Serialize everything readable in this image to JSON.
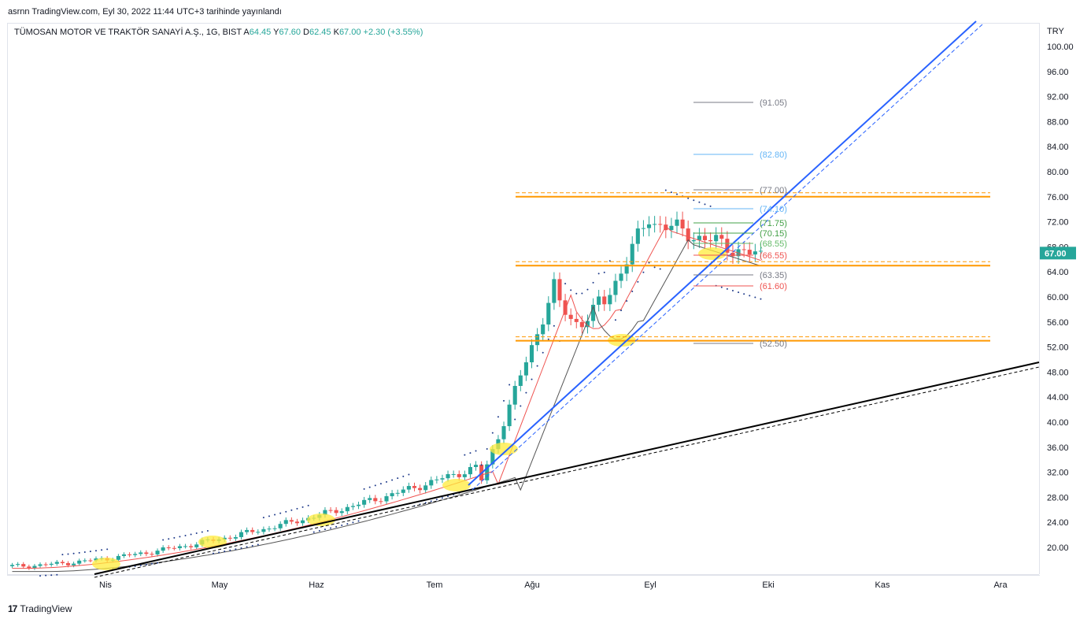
{
  "header": {
    "publish_line": "asrnn TradingView.com, Eyl 30, 2022 11:44 UTC+3 tarihinde yayınlandı"
  },
  "legend": {
    "symbol": "TÜMOSAN MOTOR VE TRAKTÖR SANAYİ A.Ş., 1G, BIST",
    "open_label": "A",
    "open": "64.45",
    "high_label": "Y",
    "high": "67.60",
    "low_label": "D",
    "low": "62.45",
    "close_label": "K",
    "close": "67.00",
    "change": "+2.30 (+3.55%)"
  },
  "price_axis": {
    "currency": "TRY",
    "ticks": [
      "100.00",
      "96.00",
      "92.00",
      "88.00",
      "84.00",
      "80.00",
      "76.00",
      "72.00",
      "68.00",
      "64.00",
      "60.00",
      "56.00",
      "52.00",
      "48.00",
      "44.00",
      "40.00",
      "36.00",
      "32.00",
      "28.00",
      "24.00",
      "20.00"
    ],
    "last_price": "67.00",
    "last_price_color": "#26a69a"
  },
  "time_axis": {
    "labels": [
      "Nis",
      "May",
      "Haz",
      "Tem",
      "Ağu",
      "Eyl",
      "Eki",
      "Kas",
      "Ara"
    ]
  },
  "fib_levels": [
    {
      "label": "(91.05)",
      "color": "#787b86"
    },
    {
      "label": "(82.80)",
      "color": "#64b5f6"
    },
    {
      "label": "(77.00)",
      "color": "#787b86"
    },
    {
      "label": "(74.10)",
      "color": "#64b5f6"
    },
    {
      "label": "(71.75)",
      "color": "#43a047"
    },
    {
      "label": "(70.15)",
      "color": "#43a047"
    },
    {
      "label": "(68.55)",
      "color": "#66bb6a"
    },
    {
      "label": "(66.55)",
      "color": "#ef5350"
    },
    {
      "label": "(63.35)",
      "color": "#787b86"
    },
    {
      "label": "(61.60)",
      "color": "#ef5350"
    },
    {
      "label": "(52.50)",
      "color": "#787b86"
    }
  ],
  "colors": {
    "up": "#26a69a",
    "down": "#ef5350",
    "support": "#ff9800",
    "trend_blue": "#2962ff",
    "trend_black": "#000000",
    "sar": "#1e3a8a",
    "highlight": "#ffeb3b"
  },
  "footer": {
    "brand": "TradingView",
    "brand_icon": "tradingview-logo-icon"
  }
}
